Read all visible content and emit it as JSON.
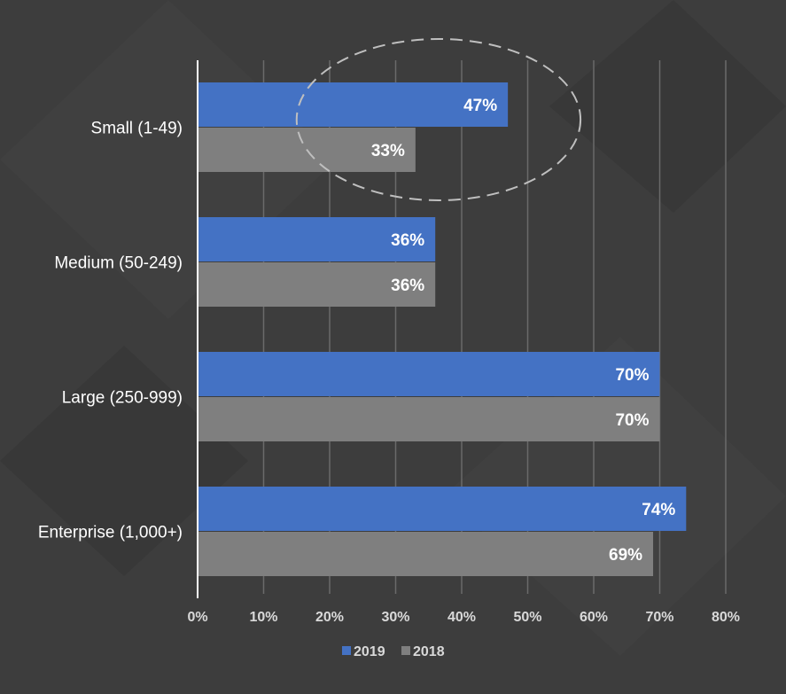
{
  "chart_data": {
    "type": "bar",
    "orientation": "horizontal",
    "categories": [
      "Small (1-49)",
      "Medium (50-249)",
      "Large (250-999)",
      "Enterprise (1,000+)"
    ],
    "series": [
      {
        "name": "2019",
        "values": [
          47,
          36,
          70,
          74
        ],
        "labels": [
          "47%",
          "36%",
          "70%",
          "74%"
        ]
      },
      {
        "name": "2018",
        "values": [
          33,
          36,
          70,
          69
        ],
        "labels": [
          "33%",
          "36%",
          "70%",
          "69%"
        ]
      }
    ],
    "xlim": [
      0,
      80
    ],
    "xticks": [
      "0%",
      "10%",
      "20%",
      "30%",
      "40%",
      "50%",
      "60%",
      "70%",
      "80%"
    ],
    "grid": "vertical",
    "legend_position": "bottom",
    "colors": {
      "2019": "#4472c4",
      "2018": "#7f7f7f",
      "background": "#3d3d3d",
      "grid": "#6a6a6a"
    },
    "annotation": {
      "shape": "dashed-ellipse",
      "target": "Small (1-49)"
    }
  }
}
